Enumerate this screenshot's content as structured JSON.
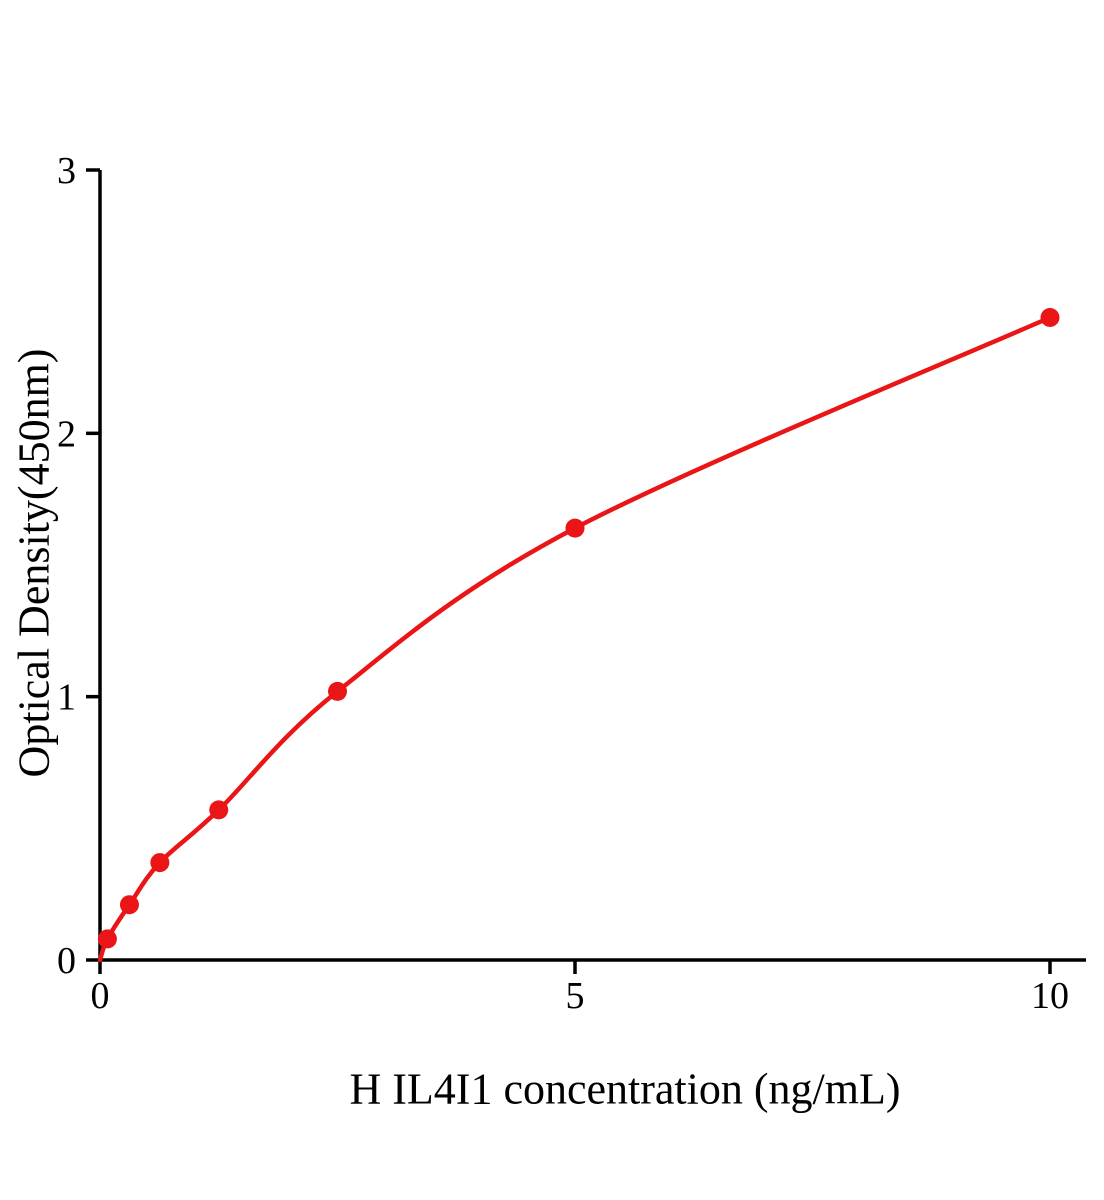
{
  "chart_data": {
    "type": "line",
    "title": "",
    "xlabel": "H IL4I1 concentration (ng/mL)",
    "ylabel": "Optical Density(450nm)",
    "x": [
      0.078,
      0.31,
      0.63,
      1.25,
      2.5,
      5,
      10
    ],
    "y": [
      0.08,
      0.21,
      0.37,
      0.57,
      1.02,
      1.64,
      2.44
    ],
    "curve_start": [
      0,
      0
    ],
    "xlim": [
      0,
      10
    ],
    "ylim": [
      0,
      3
    ],
    "x_ticks": [
      0,
      5,
      10
    ],
    "y_ticks": [
      0,
      1,
      2,
      3
    ],
    "grid": false,
    "legend_position": "none",
    "line_color": "#ea1517",
    "marker_color": "#ea1517",
    "axis_color": "#000000"
  }
}
